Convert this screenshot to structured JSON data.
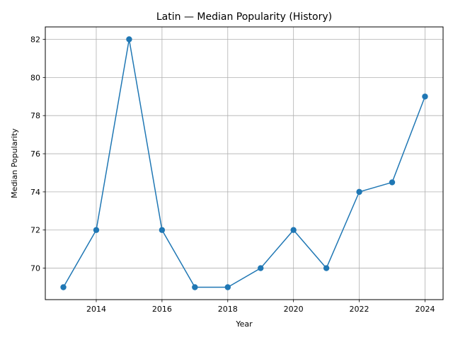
{
  "chart_data": {
    "type": "line",
    "title": "Latin — Median Popularity (History)",
    "xlabel": "Year",
    "ylabel": "Median Popularity",
    "x": [
      2013,
      2014,
      2015,
      2016,
      2017,
      2018,
      2019,
      2020,
      2021,
      2022,
      2023,
      2024
    ],
    "series": [
      {
        "values": [
          69,
          72,
          82,
          72,
          69,
          69,
          70,
          72,
          70,
          74,
          74.5,
          79
        ],
        "color": "#1f77b4"
      }
    ],
    "xlim": [
      2012.45,
      2024.55
    ],
    "ylim": [
      68.35,
      82.65
    ],
    "x_ticks": [
      2014,
      2016,
      2018,
      2020,
      2022,
      2024
    ],
    "y_ticks": [
      70,
      72,
      74,
      76,
      78,
      80,
      82
    ],
    "grid": true,
    "marker": "circle"
  }
}
